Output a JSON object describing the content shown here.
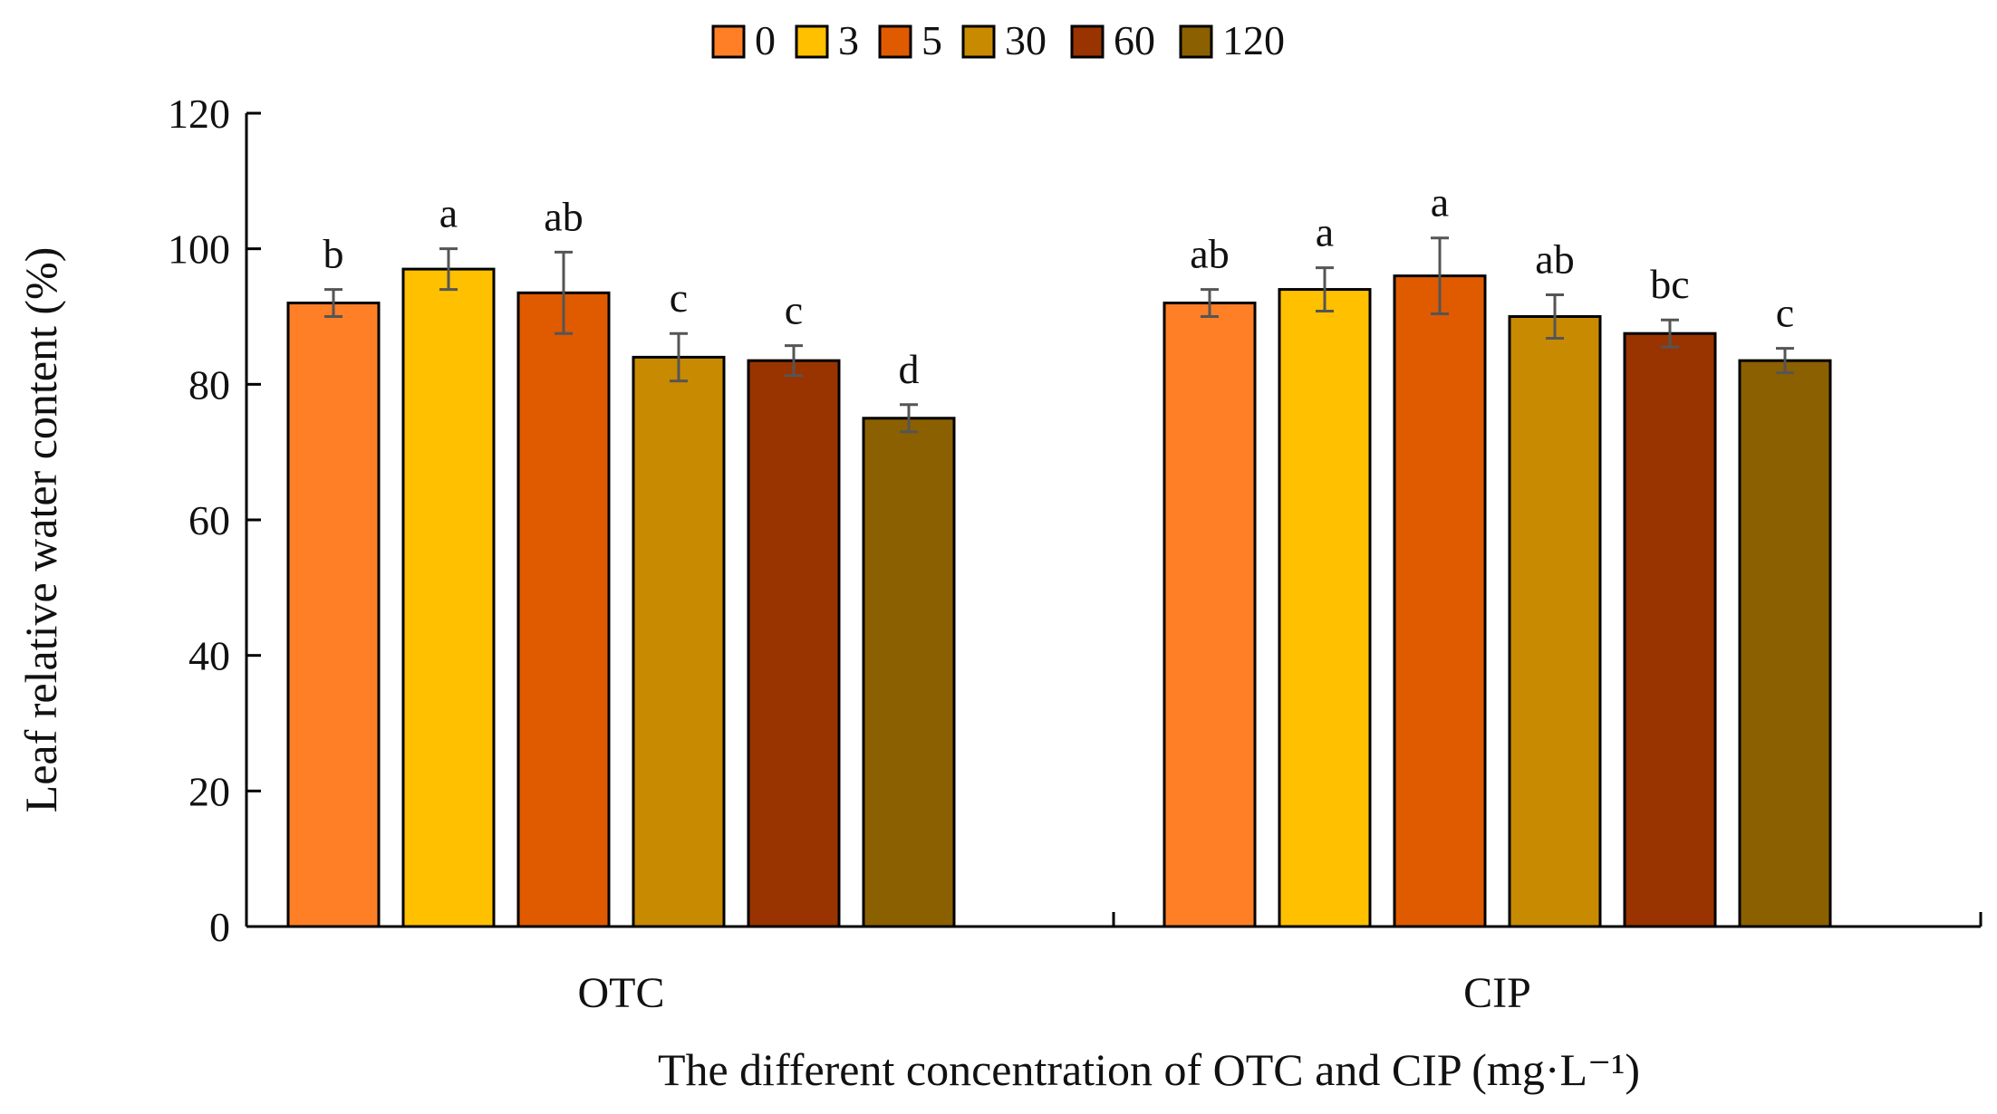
{
  "chart_data": {
    "type": "bar",
    "title": "",
    "xlabel": "The different concentration of OTC and CIP (mg·L⁻¹)",
    "ylabel": "Leaf relative water content (%)",
    "ylim": [
      0,
      120
    ],
    "yticks": [
      "0",
      "20",
      "40",
      "60",
      "80",
      "100",
      "120"
    ],
    "categories": [
      "OTC",
      "CIP"
    ],
    "legend_position": "top-center",
    "series": [
      {
        "name": "0",
        "color": "#FF7F27",
        "values": [
          92.0,
          92.0
        ],
        "errors": [
          2.0,
          2.0
        ],
        "letters": [
          "b",
          "ab"
        ]
      },
      {
        "name": "3",
        "color": "#FFC000",
        "values": [
          97.0,
          94.0
        ],
        "errors": [
          3.0,
          3.2
        ],
        "letters": [
          "a",
          "a"
        ]
      },
      {
        "name": "5",
        "color": "#E05A00",
        "values": [
          93.5,
          96.0
        ],
        "errors": [
          6.0,
          5.6
        ],
        "letters": [
          "ab",
          "a"
        ]
      },
      {
        "name": "30",
        "color": "#C88A00",
        "values": [
          84.0,
          90.0
        ],
        "errors": [
          3.5,
          3.2
        ],
        "letters": [
          "c",
          "ab"
        ]
      },
      {
        "name": "60",
        "color": "#993300",
        "values": [
          83.5,
          87.5
        ],
        "errors": [
          2.2,
          2.0
        ],
        "letters": [
          "c",
          "bc"
        ]
      },
      {
        "name": "120",
        "color": "#8B6000",
        "values": [
          75.0,
          83.5
        ],
        "errors": [
          2.0,
          1.8
        ],
        "letters": [
          "d",
          "c"
        ]
      }
    ]
  }
}
